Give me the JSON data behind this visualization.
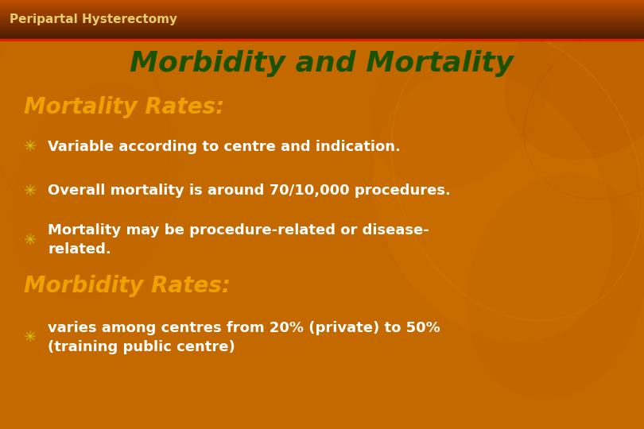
{
  "slide_title": "Peripartal Hysterectomy",
  "main_title": "Morbidity and Mortality",
  "section1_header": "Mortality Rates:",
  "section1_bullets": [
    "Variable according to centre and indication.",
    "Overall mortality is around 70/10,000 procedures.",
    "Mortality may be procedure-related or disease-\nrelated."
  ],
  "section2_header": "Morbidity Rates:",
  "section2_bullets": [
    "varies among centres from 20% (private) to 50%\n(training public centre)"
  ],
  "bg_color": "#c46800",
  "header_top_color": "#4a1a00",
  "header_bottom_color": "#c05000",
  "divider_color": "#dd2200",
  "slide_title_color": "#e8cc70",
  "main_title_color": "#1a5200",
  "section_header_color": "#f0a000",
  "bullet_text_color": "#ffffff",
  "bullet_marker_color": "#d4c800",
  "leaf_colors": [
    "#c87000",
    "#b86000",
    "#d48000",
    "#aa5500"
  ],
  "figsize": [
    8.1,
    5.4
  ],
  "dpi": 100
}
